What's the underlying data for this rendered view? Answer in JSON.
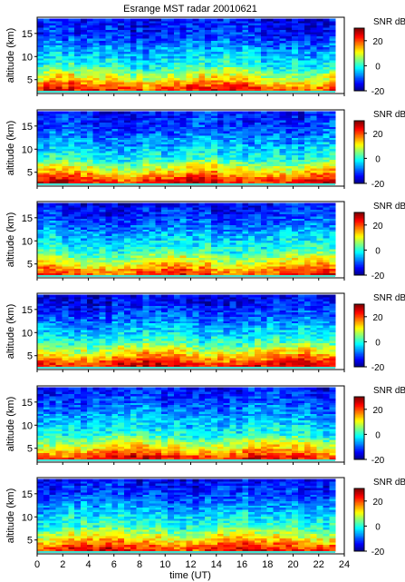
{
  "chart_data": {
    "type": "heatmap",
    "title": "Esrange MST radar 20010621",
    "xlabel": "time (UT)",
    "ylabel": "altitude (km)",
    "xlim": [
      0,
      24
    ],
    "ylim": [
      2,
      18.5
    ],
    "x_ticks": [
      "0",
      "2",
      "4",
      "6",
      "8",
      "10",
      "12",
      "14",
      "16",
      "18",
      "20",
      "22",
      "24"
    ],
    "y_ticks": [
      "5",
      "10",
      "15"
    ],
    "colorbar": {
      "label": "SNR dB",
      "range": [
        -20,
        30
      ],
      "ticks": [
        "20",
        "0",
        "-20"
      ],
      "colormap": "jet"
    },
    "panels": [
      {
        "id": 1,
        "snr_profile_dB": [
          {
            "altitude_km": 3,
            "snr": 22
          },
          {
            "altitude_km": 5,
            "snr": 12
          },
          {
            "altitude_km": 8,
            "snr": 0
          },
          {
            "altitude_km": 11,
            "snr": -5
          },
          {
            "altitude_km": 15,
            "snr": -12
          },
          {
            "altitude_km": 18,
            "snr": -14
          }
        ]
      },
      {
        "id": 2,
        "snr_profile_dB": [
          {
            "altitude_km": 3,
            "snr": 24
          },
          {
            "altitude_km": 5,
            "snr": 14
          },
          {
            "altitude_km": 8,
            "snr": 0
          },
          {
            "altitude_km": 11,
            "snr": -5
          },
          {
            "altitude_km": 15,
            "snr": -11
          },
          {
            "altitude_km": 18,
            "snr": -13
          }
        ]
      },
      {
        "id": 3,
        "snr_profile_dB": [
          {
            "altitude_km": 3,
            "snr": 21
          },
          {
            "altitude_km": 5,
            "snr": 12
          },
          {
            "altitude_km": 8,
            "snr": 1
          },
          {
            "altitude_km": 11,
            "snr": -4
          },
          {
            "altitude_km": 15,
            "snr": -11
          },
          {
            "altitude_km": 18,
            "snr": -14
          }
        ]
      },
      {
        "id": 4,
        "snr_profile_dB": [
          {
            "altitude_km": 3,
            "snr": 24
          },
          {
            "altitude_km": 5,
            "snr": 15
          },
          {
            "altitude_km": 8,
            "snr": 1
          },
          {
            "altitude_km": 11,
            "snr": -5
          },
          {
            "altitude_km": 15,
            "snr": -12
          },
          {
            "altitude_km": 18,
            "snr": -15
          }
        ]
      },
      {
        "id": 5,
        "snr_profile_dB": [
          {
            "altitude_km": 3,
            "snr": 23
          },
          {
            "altitude_km": 5,
            "snr": 13
          },
          {
            "altitude_km": 8,
            "snr": 0
          },
          {
            "altitude_km": 11,
            "snr": -4
          },
          {
            "altitude_km": 15,
            "snr": -10
          },
          {
            "altitude_km": 18,
            "snr": -13
          }
        ]
      },
      {
        "id": 6,
        "snr_profile_dB": [
          {
            "altitude_km": 3,
            "snr": 23
          },
          {
            "altitude_km": 5,
            "snr": 14
          },
          {
            "altitude_km": 8,
            "snr": 1
          },
          {
            "altitude_km": 11,
            "snr": -4
          },
          {
            "altitude_km": 15,
            "snr": -11
          },
          {
            "altitude_km": 18,
            "snr": -14
          }
        ]
      }
    ]
  }
}
